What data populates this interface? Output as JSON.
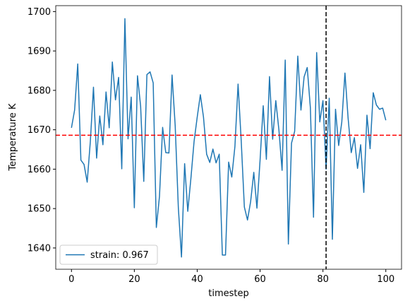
{
  "chart_data": {
    "type": "line",
    "x": [
      0,
      1,
      2,
      3,
      4,
      5,
      6,
      7,
      8,
      9,
      10,
      11,
      12,
      13,
      14,
      15,
      16,
      17,
      18,
      19,
      20,
      21,
      22,
      23,
      24,
      25,
      26,
      27,
      28,
      29,
      30,
      31,
      32,
      33,
      34,
      35,
      36,
      37,
      38,
      39,
      40,
      41,
      42,
      43,
      44,
      45,
      46,
      47,
      48,
      49,
      50,
      51,
      52,
      53,
      54,
      55,
      56,
      57,
      58,
      59,
      60,
      61,
      62,
      63,
      64,
      65,
      66,
      67,
      68,
      69,
      70,
      71,
      72,
      73,
      74,
      75,
      76,
      77,
      78,
      79,
      80,
      81,
      82,
      83,
      84,
      85,
      86,
      87,
      88,
      89,
      90,
      91,
      92,
      93,
      94,
      95,
      96,
      97,
      98,
      99,
      100
    ],
    "series": [
      {
        "name": "strain: 0.967",
        "color": "#1f77b4",
        "values": [
          1670.5,
          1675,
          1686.7,
          1662.3,
          1661.2,
          1656.7,
          1667,
          1680.8,
          1662.8,
          1673.5,
          1666.2,
          1679.6,
          1670.5,
          1687.2,
          1677.6,
          1683.3,
          1660.1,
          1698.2,
          1667.7,
          1678.3,
          1650.2,
          1683.7,
          1676,
          1656.9,
          1684,
          1684.7,
          1681.9,
          1645.2,
          1653.1,
          1670.6,
          1664.2,
          1664.1,
          1683.9,
          1671,
          1650.2,
          1637.7,
          1661.4,
          1649.3,
          1657.7,
          1667,
          1673.2,
          1678.9,
          1673.2,
          1663.8,
          1661.7,
          1665.1,
          1661.6,
          1663.8,
          1638.2,
          1638.2,
          1661.8,
          1658,
          1665.8,
          1681.6,
          1667.2,
          1650.4,
          1647.1,
          1651.8,
          1659.2,
          1650.1,
          1662.3,
          1676.1,
          1662.5,
          1683.5,
          1667.6,
          1677.4,
          1669.9,
          1659.7,
          1687.7,
          1641,
          1666.6,
          1669.6,
          1688.7,
          1675,
          1683.4,
          1685.8,
          1675.6,
          1647.8,
          1689.6,
          1672,
          1677.4,
          1660,
          1678,
          1642.2,
          1675.2,
          1666,
          1672,
          1684.4,
          1673,
          1664.2,
          1668,
          1660.2,
          1666.2,
          1654.1,
          1673.7,
          1665.2,
          1679.4,
          1676.3,
          1675.2,
          1675.5,
          1672.4
        ]
      }
    ],
    "hline": {
      "value": 1668.6,
      "color": "#ff0000"
    },
    "vline": {
      "value": 81,
      "color": "#000000"
    },
    "xlabel": "timestep",
    "ylabel": "Temperature K",
    "xlim": [
      -5,
      105
    ],
    "ylim": [
      1634.6,
      1701.5
    ],
    "xticks": [
      0,
      20,
      40,
      60,
      80,
      100
    ],
    "yticks": [
      1640,
      1650,
      1660,
      1670,
      1680,
      1690,
      1700
    ],
    "legend": "lower left"
  }
}
